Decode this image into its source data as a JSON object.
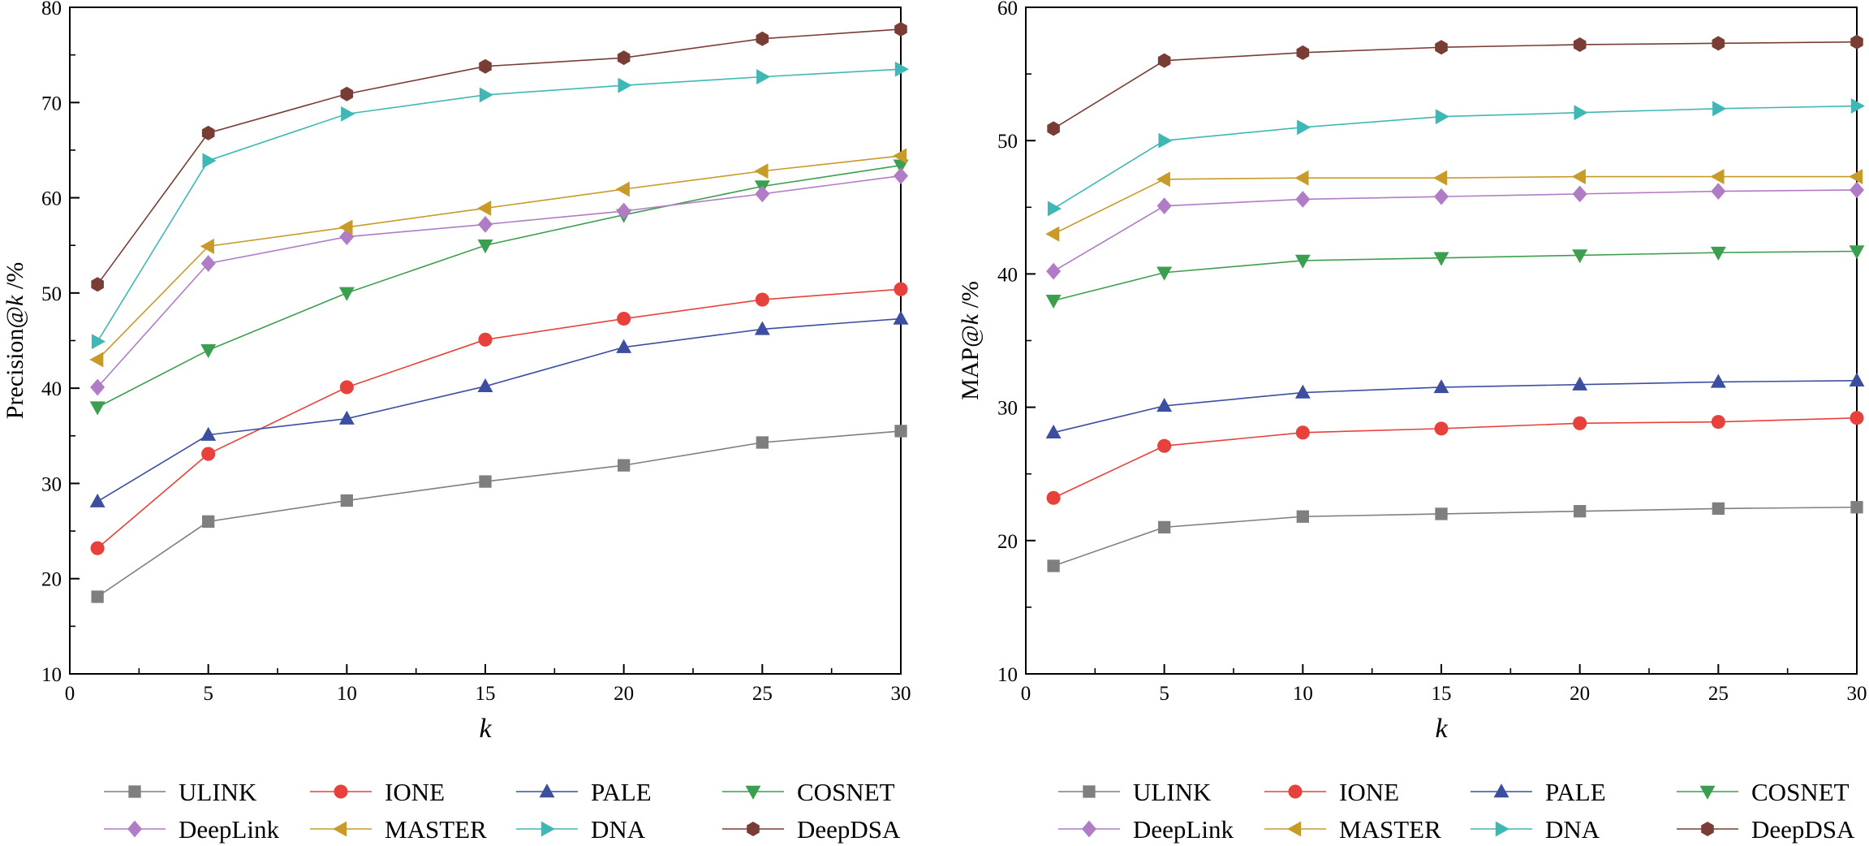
{
  "chart_data": [
    {
      "type": "line",
      "panel": "left",
      "x": [
        1,
        5,
        10,
        15,
        20,
        25,
        30
      ],
      "xlabel": "k",
      "ylabel_prefix": "Precision@",
      "ylabel_k": "k",
      "ylabel_suffix": " /%",
      "xlim": [
        0,
        30
      ],
      "ylim": [
        10,
        80
      ],
      "xticks": [
        0,
        5,
        10,
        15,
        20,
        25,
        30
      ],
      "yticks": [
        10,
        20,
        30,
        40,
        50,
        60,
        70,
        80
      ],
      "grid": false,
      "legend_position": "bottom",
      "series": [
        {
          "name": "ULINK",
          "color": "#7f7f7f",
          "marker": "square",
          "values": [
            18.1,
            26.0,
            28.2,
            30.2,
            31.9,
            34.3,
            35.5
          ]
        },
        {
          "name": "IONE",
          "color": "#e8413b",
          "marker": "circle",
          "values": [
            23.2,
            33.1,
            40.1,
            45.1,
            47.3,
            49.3,
            50.4
          ]
        },
        {
          "name": "PALE",
          "color": "#3b4ea0",
          "marker": "triangle-up",
          "values": [
            28.1,
            35.1,
            36.8,
            40.2,
            44.3,
            46.2,
            47.3
          ]
        },
        {
          "name": "COSNET",
          "color": "#3c9f4f",
          "marker": "triangle-down",
          "values": [
            38.0,
            44.0,
            50.0,
            55.0,
            58.2,
            61.2,
            63.4
          ]
        },
        {
          "name": "DeepLink",
          "color": "#b07cc6",
          "marker": "diamond",
          "values": [
            40.1,
            53.1,
            55.9,
            57.2,
            58.6,
            60.4,
            62.3
          ]
        },
        {
          "name": "MASTER",
          "color": "#c89a28",
          "marker": "triangle-left",
          "values": [
            43.0,
            54.9,
            56.9,
            58.9,
            60.9,
            62.8,
            64.4
          ]
        },
        {
          "name": "DNA",
          "color": "#3fb8b5",
          "marker": "triangle-right",
          "values": [
            44.9,
            63.9,
            68.8,
            70.8,
            71.8,
            72.7,
            73.5
          ]
        },
        {
          "name": "DeepDSA",
          "color": "#7a3d36",
          "marker": "hexagon",
          "values": [
            50.9,
            66.8,
            70.9,
            73.8,
            74.7,
            76.7,
            77.7
          ]
        }
      ]
    },
    {
      "type": "line",
      "panel": "right",
      "x": [
        1,
        5,
        10,
        15,
        20,
        25,
        30
      ],
      "xlabel": "k",
      "ylabel_prefix": "MAP@",
      "ylabel_k": "k",
      "ylabel_suffix": " /%",
      "xlim": [
        0,
        30
      ],
      "ylim": [
        10,
        60
      ],
      "xticks": [
        0,
        5,
        10,
        15,
        20,
        25,
        30
      ],
      "yticks": [
        10,
        20,
        30,
        40,
        50,
        60
      ],
      "grid": false,
      "legend_position": "bottom",
      "series": [
        {
          "name": "ULINK",
          "color": "#7f7f7f",
          "marker": "square",
          "values": [
            18.1,
            21.0,
            21.8,
            22.0,
            22.2,
            22.4,
            22.5
          ]
        },
        {
          "name": "IONE",
          "color": "#e8413b",
          "marker": "circle",
          "values": [
            23.2,
            27.1,
            28.1,
            28.4,
            28.8,
            28.9,
            29.2
          ]
        },
        {
          "name": "PALE",
          "color": "#3b4ea0",
          "marker": "triangle-up",
          "values": [
            28.1,
            30.1,
            31.1,
            31.5,
            31.7,
            31.9,
            32.0
          ]
        },
        {
          "name": "COSNET",
          "color": "#3c9f4f",
          "marker": "triangle-down",
          "values": [
            38.0,
            40.1,
            41.0,
            41.2,
            41.4,
            41.6,
            41.7
          ]
        },
        {
          "name": "DeepLink",
          "color": "#b07cc6",
          "marker": "diamond",
          "values": [
            40.2,
            45.1,
            45.6,
            45.8,
            46.0,
            46.2,
            46.3
          ]
        },
        {
          "name": "MASTER",
          "color": "#c89a28",
          "marker": "triangle-left",
          "values": [
            43.0,
            47.1,
            47.2,
            47.2,
            47.3,
            47.3,
            47.3
          ]
        },
        {
          "name": "DNA",
          "color": "#3fb8b5",
          "marker": "triangle-right",
          "values": [
            44.9,
            50.0,
            51.0,
            51.8,
            52.1,
            52.4,
            52.6
          ]
        },
        {
          "name": "DeepDSA",
          "color": "#7a3d36",
          "marker": "hexagon",
          "values": [
            50.9,
            56.0,
            56.6,
            57.0,
            57.2,
            57.3,
            57.4
          ]
        }
      ]
    }
  ]
}
